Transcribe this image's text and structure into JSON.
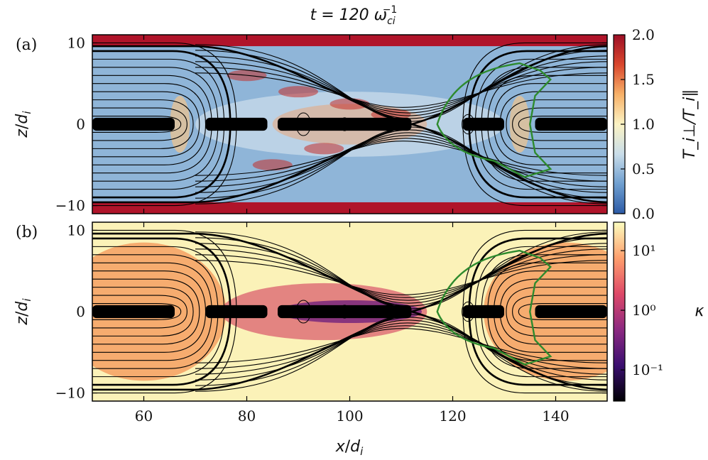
{
  "title": "t = 120 ω_ci^-1",
  "title_parts": {
    "main": "t = 120 ",
    "omega": "ω",
    "sub": "ci",
    "sup": "−1"
  },
  "chart_data": [
    {
      "type": "heatmap",
      "panel_label": "(a)",
      "xlabel": "x/d_i",
      "ylabel": "z/d_i",
      "xlim": [
        50,
        150
      ],
      "ylim": [
        -11,
        11
      ],
      "xticks": [
        60,
        80,
        100,
        120,
        140
      ],
      "yticks": [
        -10,
        0,
        10
      ],
      "ytick_labels": [
        "−10",
        "0",
        "10"
      ],
      "colorbar": {
        "label": "T_i⊥/T_i∥",
        "scale": "linear",
        "range": [
          0.0,
          2.0
        ],
        "ticks": [
          0.0,
          0.5,
          1.0,
          1.5,
          2.0
        ],
        "tick_labels": [
          "0.0",
          "0.5",
          "1.0",
          "1.5",
          "2.0"
        ],
        "colormap": [
          "#2c5aa6",
          "#6f9fd0",
          "#c9dde9",
          "#fbf3c4",
          "#f7b168",
          "#d9472d",
          "#9c0f26"
        ]
      },
      "overlays": [
        "magnetic field lines (black)",
        "separatrix (thick black)",
        "green contour"
      ],
      "xpoint": [
        112,
        0
      ]
    },
    {
      "type": "heatmap",
      "panel_label": "(b)",
      "xlabel": "x/d_i",
      "ylabel": "z/d_i",
      "xlim": [
        50,
        150
      ],
      "ylim": [
        -11,
        11
      ],
      "xticks": [
        60,
        80,
        100,
        120,
        140
      ],
      "yticks": [
        -10,
        0,
        10
      ],
      "ytick_labels": [
        "−10",
        "0",
        "10"
      ],
      "colorbar": {
        "label": "κ",
        "scale": "log",
        "range": [
          0.03,
          30
        ],
        "ticks": [
          0.1,
          1,
          10
        ],
        "tick_labels": [
          "10⁻¹",
          "10⁰",
          "10¹"
        ],
        "colormap": [
          "#000004",
          "#3b0f70",
          "#8c2981",
          "#de4968",
          "#fe9f6d",
          "#fcfdbf"
        ]
      },
      "overlays": [
        "magnetic field lines (black)",
        "separatrix (thick black)",
        "green contour"
      ],
      "xpoint": [
        112,
        0
      ]
    }
  ],
  "xaxis_label_parts": {
    "var": "x",
    "slash": "/",
    "d": "d",
    "sub": "i"
  },
  "yaxis_label_parts": {
    "var": "z",
    "slash": "/",
    "d": "d",
    "sub": "i"
  },
  "colors": {
    "fieldline": "#000000",
    "contour": "#2e8b2e",
    "frame": "#000000"
  }
}
